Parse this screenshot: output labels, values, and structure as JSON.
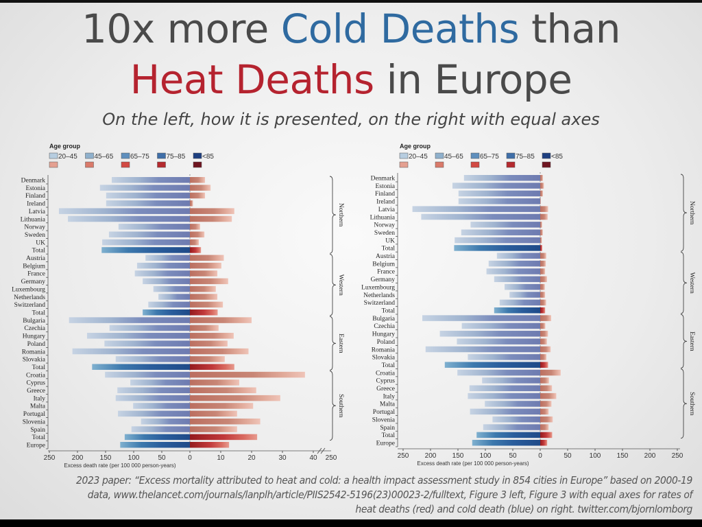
{
  "title": {
    "line1_a": "10x more ",
    "line1_b": "Cold Deaths",
    "line1_c": " than",
    "line2_a": "Heat Deaths",
    "line2_b": " in Europe"
  },
  "subtitle": "On the left, how it is presented, on the right with equal axes",
  "footer": {
    "line1": "2023 paper: “Excess mortality attributed to heat and cold: a health impact assessment study in 854 cities in Europe” based on 2000-19",
    "line2": "data, www.thelancet.com/journals/lanplh/article/PIIS2542-5196(23)00023-2/fulltext, Figure 3 left, Figure 3 with equal axes for rates of",
    "line3": "heat deaths (red) and cold death (blue) on right. twitter.com/bjornlomborg"
  },
  "colors": {
    "cold": "#6f7db0",
    "cold_total": "#244f8c",
    "heat": "#c07868",
    "heat_total": "#9e1f22",
    "title_blue": "#2f6aa0",
    "title_red": "#b5232f"
  },
  "chart_data": [
    {
      "type": "bar",
      "orientation": "horizontal-diverging",
      "legend_title": "Age group",
      "legend": [
        "20–45",
        "45–65",
        "65–75",
        "75–85",
        "<85"
      ],
      "xlabel": "Excess death rate (per 100 000 person-years)",
      "cold_ticks": [
        250,
        200,
        150,
        100,
        50,
        0
      ],
      "heat_ticks": [
        10,
        20,
        30,
        40
      ],
      "heat_axis_break_label": "250",
      "xlim_cold": [
        250,
        0
      ],
      "xlim_heat": [
        0,
        40
      ],
      "groups": [
        {
          "name": "Northern",
          "rows": [
            {
              "country": "Denmark",
              "cold": 139,
              "heat": 4.9
            },
            {
              "country": "Estonia",
              "cold": 160,
              "heat": 6.7
            },
            {
              "country": "Finland",
              "cold": 149,
              "heat": 4.9
            },
            {
              "country": "Ireland",
              "cold": 149,
              "heat": 1
            },
            {
              "country": "Latvia",
              "cold": 233,
              "heat": 14.4
            },
            {
              "country": "Lithuania",
              "cold": 217,
              "heat": 13.6
            },
            {
              "country": "Norway",
              "cold": 127,
              "heat": 3.3
            },
            {
              "country": "Sweden",
              "cold": 144,
              "heat": 4.7
            },
            {
              "country": "UK",
              "cold": 156,
              "heat": 2.9
            },
            {
              "country": "Total",
              "cold": 157,
              "heat": 3.6
            }
          ]
        },
        {
          "name": "Western",
          "rows": [
            {
              "country": "Austria",
              "cold": 79,
              "heat": 11
            },
            {
              "country": "Belgium",
              "cold": 94,
              "heat": 10.2
            },
            {
              "country": "France",
              "cold": 98,
              "heat": 8.9
            },
            {
              "country": "Germany",
              "cold": 84,
              "heat": 12.4
            },
            {
              "country": "Luxembourg",
              "cold": 65,
              "heat": 8.4
            },
            {
              "country": "Netherlands",
              "cold": 56,
              "heat": 8.9
            },
            {
              "country": "Switzerland",
              "cold": 74,
              "heat": 10.7
            },
            {
              "country": "Total",
              "cold": 84,
              "heat": 9
            }
          ]
        },
        {
          "name": "Eastern",
          "rows": [
            {
              "country": "Bulgaria",
              "cold": 215,
              "heat": 20
            },
            {
              "country": "Czechia",
              "cold": 143,
              "heat": 9.3
            },
            {
              "country": "Hungary",
              "cold": 183,
              "heat": 14.2
            },
            {
              "country": "Poland",
              "cold": 152,
              "heat": 12.2
            },
            {
              "country": "Romania",
              "cold": 209,
              "heat": 19
            },
            {
              "country": "Slovakia",
              "cold": 132,
              "heat": 11.3
            },
            {
              "country": "Total",
              "cold": 174,
              "heat": 14.4
            }
          ]
        },
        {
          "name": "Southern",
          "rows": [
            {
              "country": "Croatia",
              "cold": 151,
              "heat": 37.3
            },
            {
              "country": "Cyprus",
              "cold": 106,
              "heat": 16
            },
            {
              "country": "Greece",
              "cold": 129,
              "heat": 21.5
            },
            {
              "country": "Italy",
              "cold": 132,
              "heat": 29.3
            },
            {
              "country": "Malta",
              "cold": 101,
              "heat": 20.5
            },
            {
              "country": "Portugal",
              "cold": 128,
              "heat": 15.3
            },
            {
              "country": "Slovenia",
              "cold": 87,
              "heat": 22.8
            },
            {
              "country": "Spain",
              "cold": 104,
              "heat": 15.3
            },
            {
              "country": "Total",
              "cold": 116,
              "heat": 21.8
            }
          ]
        }
      ],
      "overall": {
        "country": "Europe",
        "cold": 124,
        "heat": 12.7
      }
    },
    {
      "type": "bar",
      "orientation": "horizontal-diverging",
      "legend_title": "Age group",
      "legend": [
        "20–45",
        "45–65",
        "65–75",
        "75–85",
        "<85"
      ],
      "xlabel": "Excess death rate (per 100 000 person-years)",
      "cold_ticks": [
        250,
        200,
        150,
        100,
        50,
        0
      ],
      "heat_ticks": [
        50,
        100,
        150,
        200,
        250
      ],
      "xlim_cold": [
        250,
        0
      ],
      "xlim_heat": [
        0,
        250
      ],
      "same_data_as": "left chart, equal axes"
    }
  ]
}
